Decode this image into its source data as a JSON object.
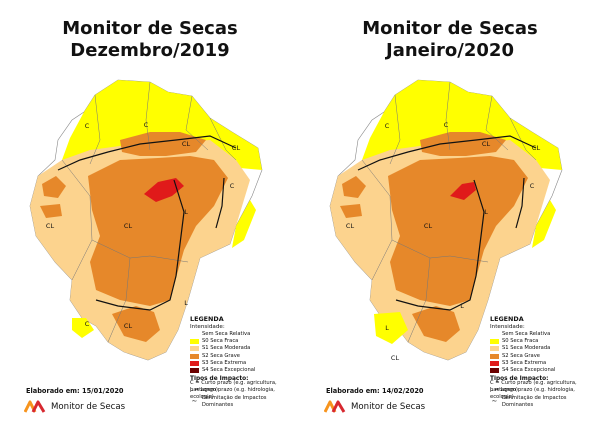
{
  "panels": [
    {
      "title_line1": "Monitor de Secas",
      "title_line2": "Dezembro/2019",
      "elaborado": "Elaborado em: 15/01/2020",
      "map_labels": [
        "C",
        "C",
        "CL",
        "CL",
        "CL",
        "L",
        "C",
        "CL",
        "C",
        "CL",
        "L"
      ]
    },
    {
      "title_line1": "Monitor de Secas",
      "title_line2": "Janeiro/2020",
      "elaborado": "Elaborado em: 14/02/2020",
      "map_labels": [
        "C",
        "C",
        "CL",
        "CL",
        "CL",
        "L",
        "C",
        "CL",
        "L",
        "L",
        "CL"
      ]
    }
  ],
  "legend": {
    "title": "LEGENDA",
    "intensity_title": "Intensidade:",
    "intensities": [
      {
        "label": "Sem Seca Relativa",
        "color": "#ffffff"
      },
      {
        "label": "S0 Seca Fraca",
        "color": "#ffff00"
      },
      {
        "label": "S1 Seca Moderada",
        "color": "#fcd38e"
      },
      {
        "label": "S2 Seca Grave",
        "color": "#e6882a"
      },
      {
        "label": "S3 Seca Extrema",
        "color": "#e01a1a"
      },
      {
        "label": "S4 Seca Excepcional",
        "color": "#6b0000"
      }
    ],
    "impact_title": "Tipos de Impacto:",
    "impacts": [
      "C = Curto prazo (e.g. agricultura, pastagem)",
      "L = Longo prazo (e.g. hidrologia, ecologia)"
    ],
    "delimitation": "Delimitação de Impactos Dominantes"
  },
  "brand": {
    "name": "Monitor de Secas",
    "logo_colors": [
      "#f7941d",
      "#d7282f"
    ]
  }
}
